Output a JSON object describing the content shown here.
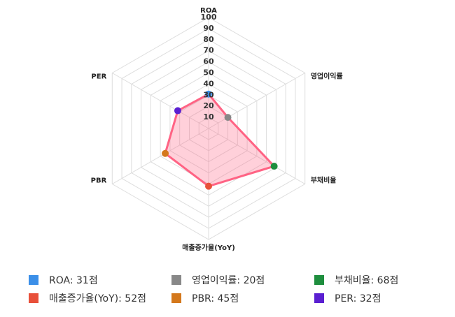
{
  "chart_data": {
    "type": "radar",
    "categories": [
      "ROA",
      "영업이익률",
      "부채비율",
      "매출증가율(YoY)",
      "PBR",
      "PER"
    ],
    "values": [
      31,
      20,
      68,
      52,
      45,
      32
    ],
    "value_labels": [
      "ROA: 31점",
      "영업이익률: 20점",
      "부채비율: 68점",
      "매출증가율(YoY): 52점",
      "PBR: 45점",
      "PER: 32점"
    ],
    "point_colors": [
      "#3b8fe8",
      "#888888",
      "#1e8e3e",
      "#e8503a",
      "#d4781c",
      "#5a1fd1"
    ],
    "color": "#ff6384",
    "rlim": [
      0,
      100
    ],
    "rticks": [
      10,
      20,
      30,
      40,
      50,
      60,
      70,
      80,
      90,
      100
    ],
    "grid": true,
    "legend": "bottom"
  }
}
